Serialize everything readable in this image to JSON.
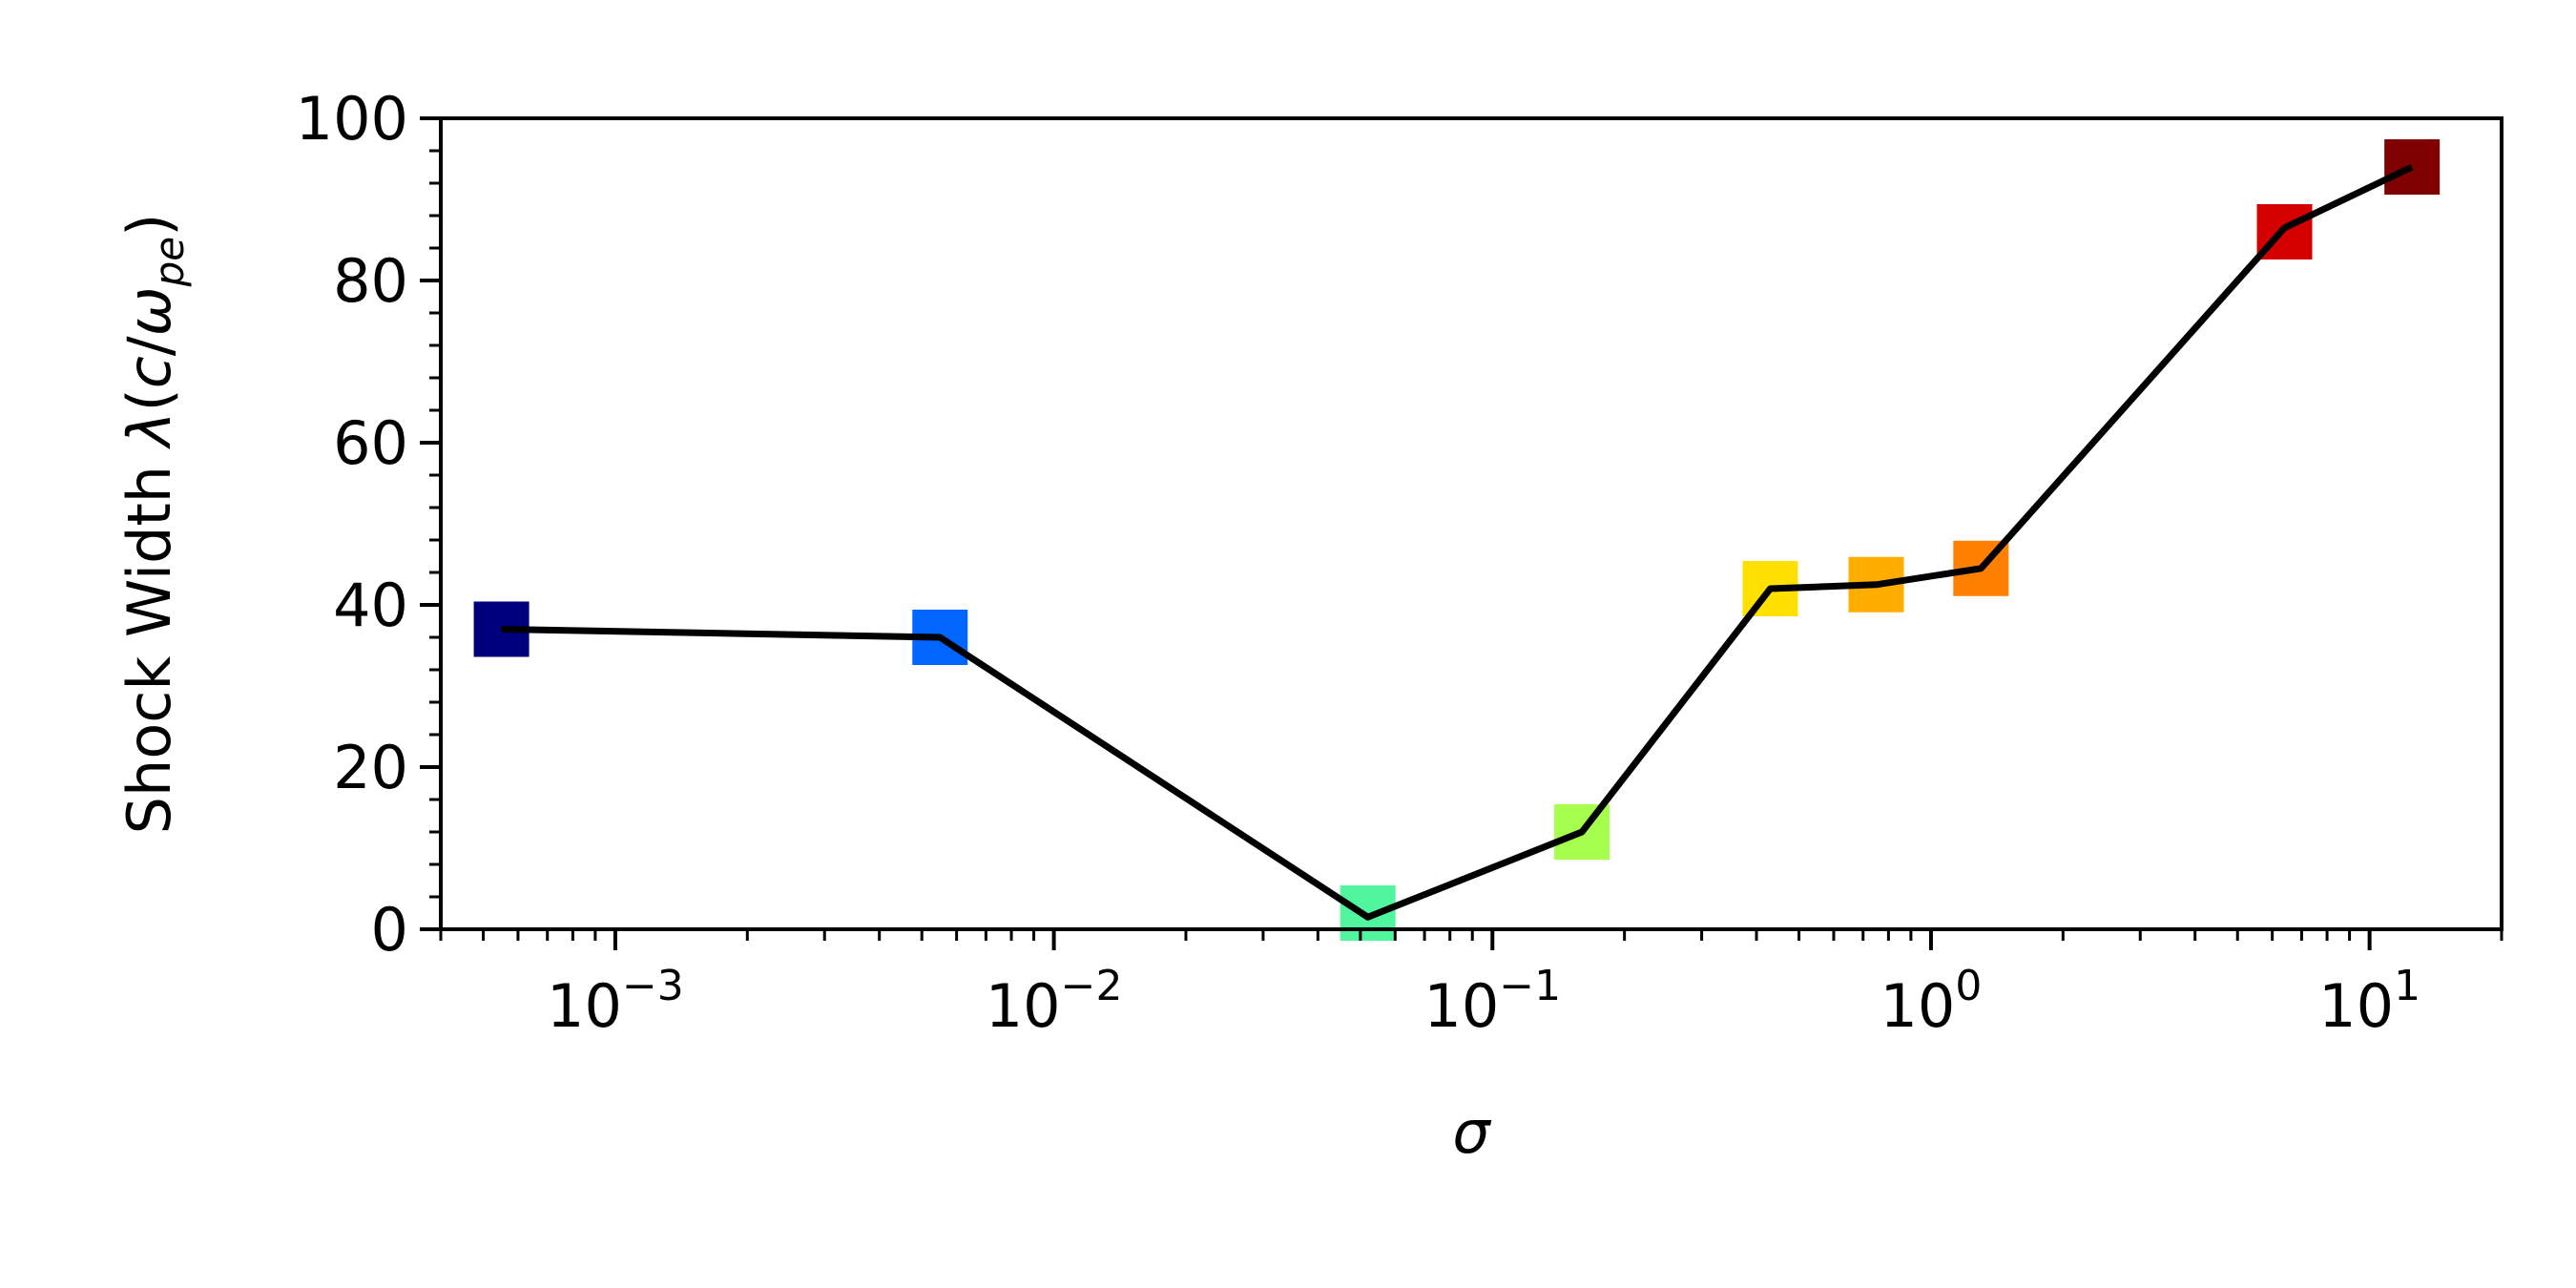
{
  "chart_data": {
    "type": "line",
    "title": "",
    "xlabel": "σ",
    "ylabel_text": "Shock Width ",
    "ylabel_lambda": "λ",
    "ylabel_paren_open": "(",
    "ylabel_c": "c",
    "ylabel_slash": "/",
    "ylabel_omega": "ω",
    "ylabel_sub": "pe",
    "ylabel_paren_close": ")",
    "x_scale": "log",
    "xlim": [
      0.0004,
      20
    ],
    "ylim": [
      0,
      100
    ],
    "x_ticks": [
      {
        "base": "10",
        "exp": "−3",
        "value": 0.001
      },
      {
        "base": "10",
        "exp": "−2",
        "value": 0.01
      },
      {
        "base": "10",
        "exp": "−1",
        "value": 0.1
      },
      {
        "base": "10",
        "exp": "0",
        "value": 1
      },
      {
        "base": "10",
        "exp": "1",
        "value": 10
      }
    ],
    "y_ticks": [
      {
        "label": "0",
        "value": 0
      },
      {
        "label": "20",
        "value": 20
      },
      {
        "label": "40",
        "value": 40
      },
      {
        "label": "60",
        "value": 60
      },
      {
        "label": "80",
        "value": 80
      },
      {
        "label": "100",
        "value": 100
      }
    ],
    "line_color": "#000000",
    "markers": [
      {
        "x": 0.00055,
        "y": 37,
        "color": "#00007f"
      },
      {
        "x": 0.0055,
        "y": 36,
        "color": "#0066ff"
      },
      {
        "x": 0.052,
        "y": 2,
        "color": "#50f59e"
      },
      {
        "x": 0.16,
        "y": 12,
        "color": "#a5ff4c"
      },
      {
        "x": 0.43,
        "y": 42,
        "color": "#ffe000"
      },
      {
        "x": 0.75,
        "y": 42.5,
        "color": "#ffae00"
      },
      {
        "x": 1.3,
        "y": 44.5,
        "color": "#ff7f00"
      },
      {
        "x": 6.4,
        "y": 86,
        "color": "#d40000"
      },
      {
        "x": 12.5,
        "y": 94,
        "color": "#7f0000"
      }
    ],
    "line": [
      {
        "x": 0.00055,
        "y": 37
      },
      {
        "x": 0.0055,
        "y": 36
      },
      {
        "x": 0.052,
        "y": 1.5
      },
      {
        "x": 0.16,
        "y": 12
      },
      {
        "x": 0.43,
        "y": 42
      },
      {
        "x": 0.75,
        "y": 42.5
      },
      {
        "x": 1.3,
        "y": 44.5
      },
      {
        "x": 6.4,
        "y": 86.5
      },
      {
        "x": 12.5,
        "y": 94
      }
    ]
  }
}
